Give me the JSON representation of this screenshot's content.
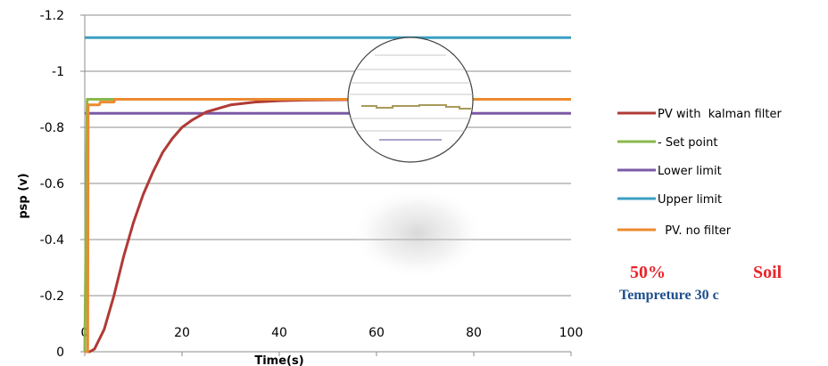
{
  "chart_data": {
    "type": "line",
    "xlabel": "Time(s)",
    "ylabel": "psp (v)",
    "xlim": [
      0,
      100
    ],
    "ylim": [
      0,
      -1.2
    ],
    "y_axis_reversed": true,
    "x_ticks": [
      0,
      20,
      40,
      60,
      80,
      100
    ],
    "y_ticks": [
      0,
      -0.2,
      -0.4,
      -0.6,
      -0.8,
      -1,
      -1.2
    ],
    "grid": "horizontal",
    "legend_position": "right",
    "zoom_inset": "circle",
    "series": [
      {
        "name": "PV with  kalman filter",
        "color": "#b03a36",
        "x": [
          0,
          1,
          2,
          4,
          6,
          8,
          10,
          12,
          14,
          16,
          18,
          20,
          22,
          25,
          28,
          30,
          35,
          40,
          45,
          50,
          60,
          70,
          80,
          90,
          100
        ],
        "y": [
          0,
          0,
          -0.01,
          -0.08,
          -0.2,
          -0.34,
          -0.46,
          -0.56,
          -0.64,
          -0.71,
          -0.76,
          -0.8,
          -0.825,
          -0.855,
          -0.87,
          -0.88,
          -0.89,
          -0.895,
          -0.897,
          -0.898,
          -0.899,
          -0.9,
          -0.9,
          -0.9,
          -0.9
        ]
      },
      {
        "name": "- Set point",
        "color": "#8ab84a",
        "x": [
          0,
          0.5,
          100
        ],
        "y": [
          0,
          -0.9,
          -0.9
        ]
      },
      {
        "name": "Lower limit",
        "color": "#7b5aa6",
        "x": [
          0,
          100
        ],
        "y": [
          -0.85,
          -0.85
        ]
      },
      {
        "name": "Upper limit",
        "color": "#3ba0c2",
        "x": [
          0,
          100
        ],
        "y": [
          -1.12,
          -1.12
        ]
      },
      {
        "name": "  PV. no filter",
        "color": "#ec8a2f",
        "x": [
          0,
          0.6,
          0.7,
          3,
          3.2,
          6,
          6.2,
          100
        ],
        "y": [
          0,
          0,
          -0.88,
          -0.88,
          -0.89,
          -0.89,
          -0.9,
          -0.9
        ]
      }
    ]
  },
  "annotations": {
    "percent": "50%",
    "soil": "Soil",
    "temperature": "Tempreture 30 c"
  }
}
